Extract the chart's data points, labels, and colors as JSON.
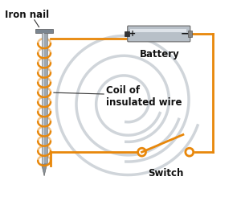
{
  "bg_color": "#ffffff",
  "wire_color": "#E8870A",
  "nail_body_color": "#A0A8B0",
  "nail_head_color": "#7A8590",
  "battery_body_color": "#A0A8B0",
  "battery_pos_color": "#333333",
  "battery_neg_color": "#333333",
  "coil_color": "#E8870A",
  "switch_color": "#E8870A",
  "label_color": "#111111",
  "iron_nail_label": "Iron nail",
  "coil_label": "Coil of\ninsulated wire",
  "battery_label": "Battery",
  "switch_label": "Switch",
  "watermark_color": "#D0D5DA"
}
